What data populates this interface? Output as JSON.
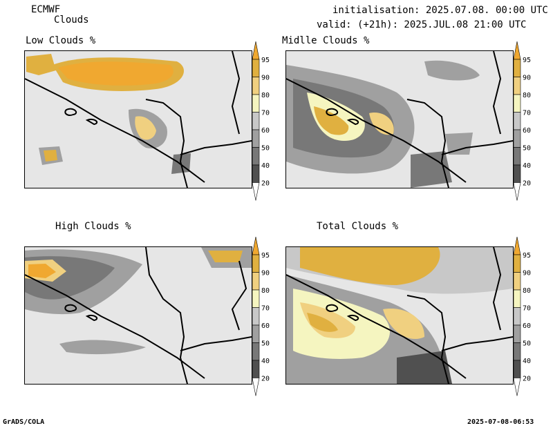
{
  "header": {
    "model": "ECMWF",
    "product": "Clouds",
    "init": "initialisation: 2025.07.08. 00:00 UTC",
    "valid": "valid: (+21h): 2025.JUL.08 21:00 UTC"
  },
  "panels": [
    {
      "title": "Low Clouds %"
    },
    {
      "title": "Midlle Clouds %"
    },
    {
      "title": "High Clouds %"
    },
    {
      "title": "Total Clouds %"
    }
  ],
  "colorbar": {
    "labels": [
      "20",
      "40",
      "50",
      "60",
      "70",
      "80",
      "90",
      "95"
    ],
    "colors": [
      "#ffffff",
      "#505050",
      "#787878",
      "#a0a0a0",
      "#c8c8c8",
      "#f5f5c0",
      "#f0d080",
      "#e0b040",
      "#f0a830"
    ]
  },
  "footer": {
    "left": "GrADS/COLA",
    "right": "2025-07-08-06:53"
  }
}
